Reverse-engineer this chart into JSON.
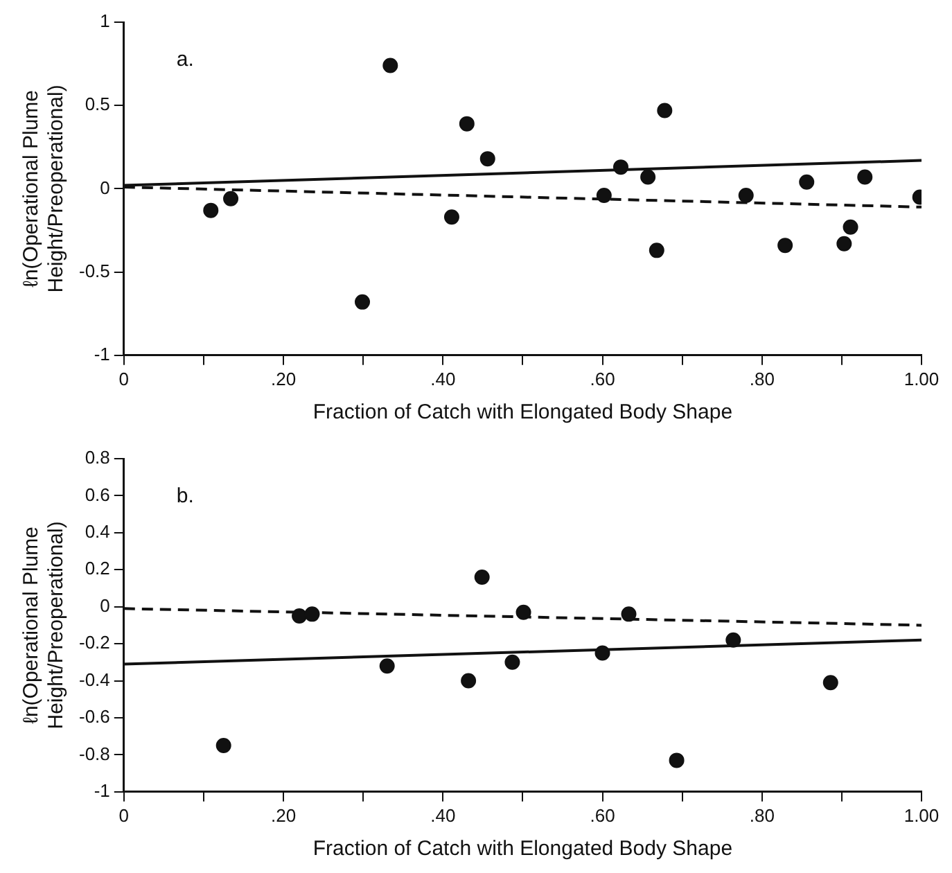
{
  "chart_data": [
    {
      "type": "scatter",
      "annotations": [
        "a."
      ],
      "xlabel": "Fraction of Catch with Elongated Body Shape",
      "ylabel": "ℓn(Operational Plume Height/Preoperational)",
      "xlim": [
        0,
        1
      ],
      "ylim": [
        -1,
        1
      ],
      "xticks": [
        0,
        {
          "value": 0.1,
          "label": null
        },
        {
          "value": 0.2,
          "label": ".20"
        },
        {
          "value": 0.3,
          "label": null
        },
        {
          "value": 0.4,
          "label": ".40"
        },
        {
          "value": 0.5,
          "label": null
        },
        {
          "value": 0.6,
          "label": ".60"
        },
        {
          "value": 0.7,
          "label": null
        },
        {
          "value": 0.8,
          "label": ".80"
        },
        {
          "value": 0.9,
          "label": null
        },
        {
          "value": 1,
          "label": "1.00"
        }
      ],
      "yticks": [
        -1,
        -0.5,
        0,
        0.5,
        1
      ],
      "grid": false,
      "legend": false,
      "series": [
        {
          "color": "#111111",
          "marker": "circle",
          "x": [
            0.109,
            0.134,
            0.299,
            0.334,
            0.411,
            0.43,
            0.456,
            0.602,
            0.623,
            0.657,
            0.668,
            0.678,
            0.78,
            0.829,
            0.856,
            0.903,
            0.911,
            0.929,
            0.998
          ],
          "values": [
            -0.13,
            -0.06,
            -0.68,
            0.74,
            -0.17,
            0.39,
            0.18,
            -0.04,
            0.13,
            0.07,
            -0.37,
            0.47,
            -0.04,
            -0.34,
            0.04,
            -0.33,
            -0.23,
            0.07,
            -0.05
          ]
        },
        {
          "type": "line",
          "line_style": "solid",
          "color": "#111111",
          "x": [
            0,
            1
          ],
          "values": [
            0.02,
            0.17
          ]
        },
        {
          "type": "line",
          "line_style": "dashed",
          "color": "#111111",
          "x": [
            0,
            1
          ],
          "values": [
            0.01,
            -0.11
          ]
        }
      ]
    },
    {
      "type": "scatter",
      "annotations": [
        "b."
      ],
      "xlabel": "Fraction of Catch with Elongated Body Shape",
      "ylabel": "ℓn(Operational Plume Height/Preoperational)",
      "xlim": [
        0,
        1
      ],
      "ylim": [
        -1,
        0.8
      ],
      "xticks": [
        0,
        {
          "value": 0.1,
          "label": null
        },
        {
          "value": 0.2,
          "label": ".20"
        },
        {
          "value": 0.3,
          "label": null
        },
        {
          "value": 0.4,
          "label": ".40"
        },
        {
          "value": 0.5,
          "label": null
        },
        {
          "value": 0.6,
          "label": ".60"
        },
        {
          "value": 0.7,
          "label": null
        },
        {
          "value": 0.8,
          "label": ".80"
        },
        {
          "value": 0.9,
          "label": null
        },
        {
          "value": 1,
          "label": "1.00"
        }
      ],
      "yticks": [
        -1,
        -0.8,
        -0.6,
        -0.4,
        -0.2,
        0,
        0.2,
        0.4,
        0.6,
        0.8
      ],
      "grid": false,
      "legend": false,
      "series": [
        {
          "color": "#111111",
          "marker": "circle",
          "x": [
            0.125,
            0.22,
            0.236,
            0.33,
            0.432,
            0.449,
            0.487,
            0.501,
            0.6,
            0.633,
            0.693,
            0.764,
            0.886
          ],
          "values": [
            -0.75,
            -0.05,
            -0.04,
            -0.32,
            -0.4,
            0.16,
            -0.3,
            -0.03,
            -0.25,
            -0.04,
            -0.83,
            -0.18,
            -0.41
          ]
        },
        {
          "type": "line",
          "line_style": "solid",
          "color": "#111111",
          "x": [
            0,
            1
          ],
          "values": [
            -0.31,
            -0.18
          ]
        },
        {
          "type": "line",
          "line_style": "dashed",
          "color": "#111111",
          "x": [
            0,
            1
          ],
          "values": [
            -0.01,
            -0.1
          ]
        }
      ]
    }
  ]
}
